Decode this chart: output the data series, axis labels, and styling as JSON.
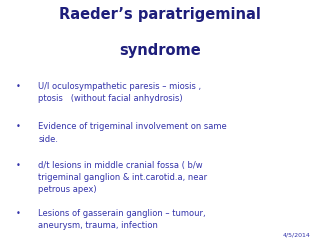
{
  "title_line1": "Raeder’s paratrigeminal",
  "title_line2": "syndrome",
  "title_color": "#1E1E7B",
  "title_fontsize": 10.5,
  "bullet_color": "#3333AA",
  "bullet_fontsize": 6.0,
  "bullet_char": "•",
  "bullets": [
    "U/l oculosympathetic paresis – miosis ,\nptosis   (without facial anhydrosis)",
    "Evidence of trigeminal involvement on same\nside.",
    "d/t lesions in middle cranial fossa ( b/w\ntrigeminal ganglion & int.carotid.a, near\npetrous apex)",
    "Lesions of gasserain ganglion – tumour,\naneurysm, trauma, infection"
  ],
  "date_text": "4/5/2014",
  "date_fontsize": 4.5,
  "date_color": "#3333AA",
  "background_color": "#FFFFFF"
}
